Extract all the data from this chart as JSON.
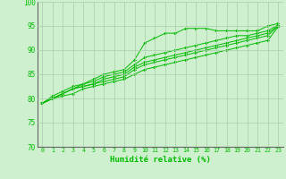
{
  "title": "",
  "xlabel": "Humidité relative (%)",
  "ylabel": "",
  "background_color": "#cff0cf",
  "grid_color": "#aaccaa",
  "line_color": "#00bb00",
  "marker_color": "#00bb00",
  "xlim": [
    -0.5,
    23.5
  ],
  "ylim": [
    70,
    100
  ],
  "yticks": [
    70,
    75,
    80,
    85,
    90,
    95,
    100
  ],
  "xticks": [
    0,
    1,
    2,
    3,
    4,
    5,
    6,
    7,
    8,
    9,
    10,
    11,
    12,
    13,
    14,
    15,
    16,
    17,
    18,
    19,
    20,
    21,
    22,
    23
  ],
  "series": [
    [
      79,
      80.5,
      81.5,
      82.5,
      83,
      84,
      85,
      85.5,
      86,
      88,
      91.5,
      92.5,
      93.5,
      93.5,
      94.5,
      94.5,
      94.5,
      94,
      94,
      94,
      94,
      94,
      95,
      95.5
    ],
    [
      79,
      80,
      81,
      82,
      83,
      83.5,
      84.5,
      85,
      85.5,
      87,
      88.5,
      89,
      89.5,
      90,
      90.5,
      91,
      91.5,
      92,
      92.5,
      93,
      93,
      93.5,
      94,
      95.2
    ],
    [
      79,
      80,
      81,
      82,
      82.5,
      83,
      84,
      84.5,
      85,
      86.5,
      87.5,
      88,
      88.5,
      89,
      89.5,
      90,
      90.5,
      91,
      91.5,
      92,
      92.5,
      93,
      93.5,
      95
    ],
    [
      79,
      80,
      81,
      82,
      82.5,
      83,
      83.5,
      84,
      84.5,
      86,
      87,
      87.5,
      88,
      88.5,
      89,
      89.5,
      90,
      90.5,
      91,
      91.5,
      92,
      92.5,
      93,
      95
    ],
    [
      79,
      80,
      80.5,
      81,
      82,
      82.5,
      83,
      83.5,
      84,
      85,
      86,
      86.5,
      87,
      87.5,
      88,
      88.5,
      89,
      89.5,
      90,
      90.5,
      91,
      91.5,
      92,
      94.8
    ]
  ]
}
